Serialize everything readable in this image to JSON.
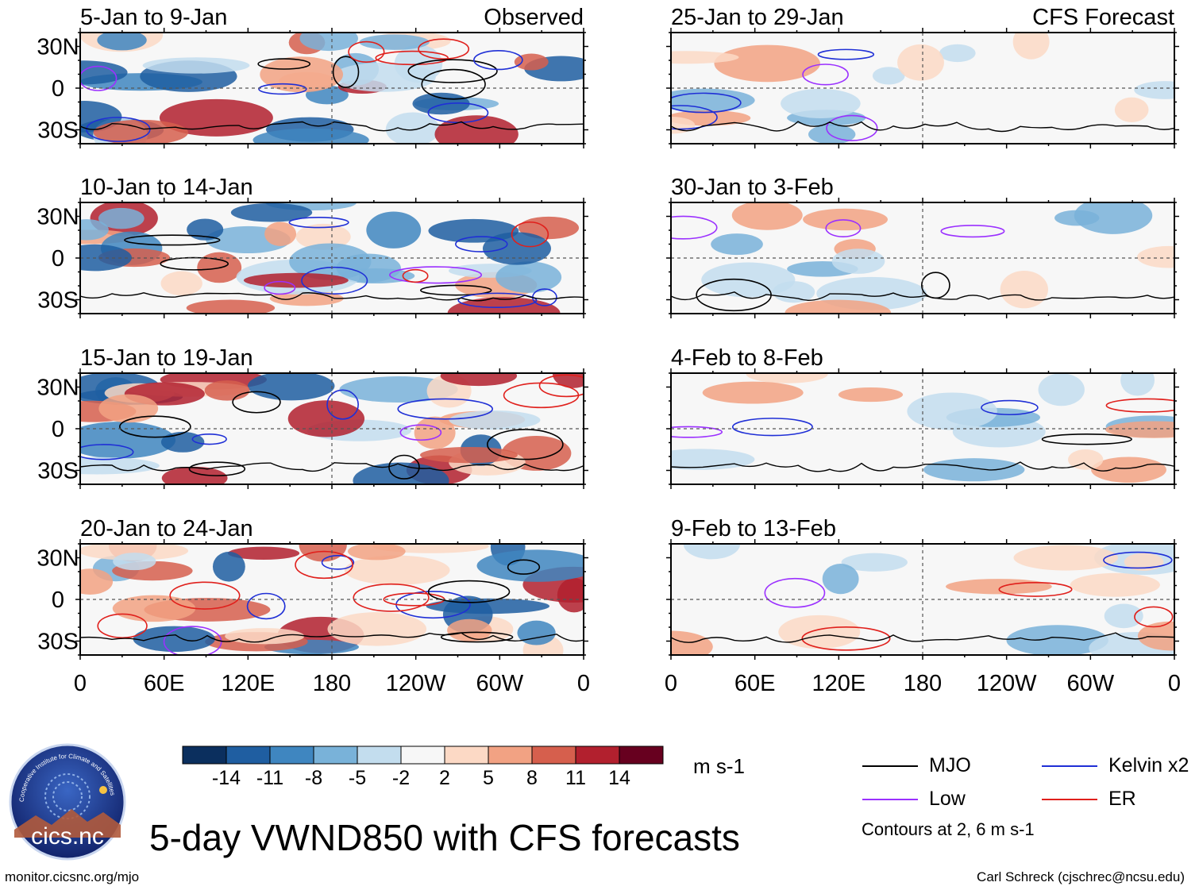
{
  "title": "5-day VWND850 with CFS forecasts",
  "footer": {
    "left": "monitor.cicsnc.org/mjo",
    "right": "Carl Schreck (cjschrec@ncsu.edu)"
  },
  "logo": {
    "text": "cics.nc",
    "arc_text": "Cooperative Institute for Climate and Satellites"
  },
  "colorbar": {
    "units": "m s-1",
    "labels": [
      "-14",
      "-11",
      "-8",
      "-5",
      "-2",
      "2",
      "5",
      "8",
      "11",
      "14"
    ],
    "colors": [
      "#0b2f5e",
      "#1f5ea1",
      "#3f86c0",
      "#79b2d9",
      "#c3ddee",
      "#f7f7f7",
      "#fcd9c5",
      "#f2a283",
      "#d65f4d",
      "#b2202e",
      "#67001f"
    ]
  },
  "legend": {
    "items": [
      {
        "label": "MJO",
        "color": "#000000"
      },
      {
        "label": "Kelvin x2",
        "color": "#1f2fd6"
      },
      {
        "label": "Low",
        "color": "#9b30ff"
      },
      {
        "label": "ER",
        "color": "#e0201c"
      }
    ],
    "contour_note": "Contours at 2, 6 m s-1"
  },
  "chart_data": [
    {
      "type": "heatmap",
      "title": "5-Jan to 9-Jan",
      "corner_label": "Observed",
      "y_ticks": [
        "30N",
        "0",
        "30S"
      ],
      "x_ticks": [],
      "ylim": [
        -40,
        40
      ],
      "xlim": [
        0,
        360
      ]
    },
    {
      "type": "heatmap",
      "title": "10-Jan to 14-Jan",
      "corner_label": "",
      "y_ticks": [
        "30N",
        "0",
        "30S"
      ],
      "x_ticks": [],
      "ylim": [
        -40,
        40
      ],
      "xlim": [
        0,
        360
      ]
    },
    {
      "type": "heatmap",
      "title": "15-Jan to 19-Jan",
      "corner_label": "",
      "y_ticks": [
        "30N",
        "0",
        "30S"
      ],
      "x_ticks": [],
      "ylim": [
        -40,
        40
      ],
      "xlim": [
        0,
        360
      ]
    },
    {
      "type": "heatmap",
      "title": "20-Jan to 24-Jan",
      "corner_label": "",
      "y_ticks": [
        "30N",
        "0",
        "30S"
      ],
      "x_ticks": [
        "0",
        "60E",
        "120E",
        "180",
        "120W",
        "60W",
        "0"
      ],
      "ylim": [
        -40,
        40
      ],
      "xlim": [
        0,
        360
      ]
    },
    {
      "type": "heatmap",
      "title": "25-Jan to 29-Jan",
      "corner_label": "CFS Forecast",
      "y_ticks": [],
      "x_ticks": [],
      "ylim": [
        -40,
        40
      ],
      "xlim": [
        0,
        360
      ]
    },
    {
      "type": "heatmap",
      "title": "30-Jan to 3-Feb",
      "corner_label": "",
      "y_ticks": [],
      "x_ticks": [],
      "ylim": [
        -40,
        40
      ],
      "xlim": [
        0,
        360
      ]
    },
    {
      "type": "heatmap",
      "title": "4-Feb to 8-Feb",
      "corner_label": "",
      "y_ticks": [],
      "x_ticks": [],
      "ylim": [
        -40,
        40
      ],
      "xlim": [
        0,
        360
      ]
    },
    {
      "type": "heatmap",
      "title": "9-Feb to 13-Feb",
      "corner_label": "",
      "y_ticks": [],
      "x_ticks": [
        "0",
        "60E",
        "120E",
        "180",
        "120W",
        "60W",
        "0"
      ],
      "ylim": [
        -40,
        40
      ],
      "xlim": [
        0,
        360
      ]
    }
  ]
}
